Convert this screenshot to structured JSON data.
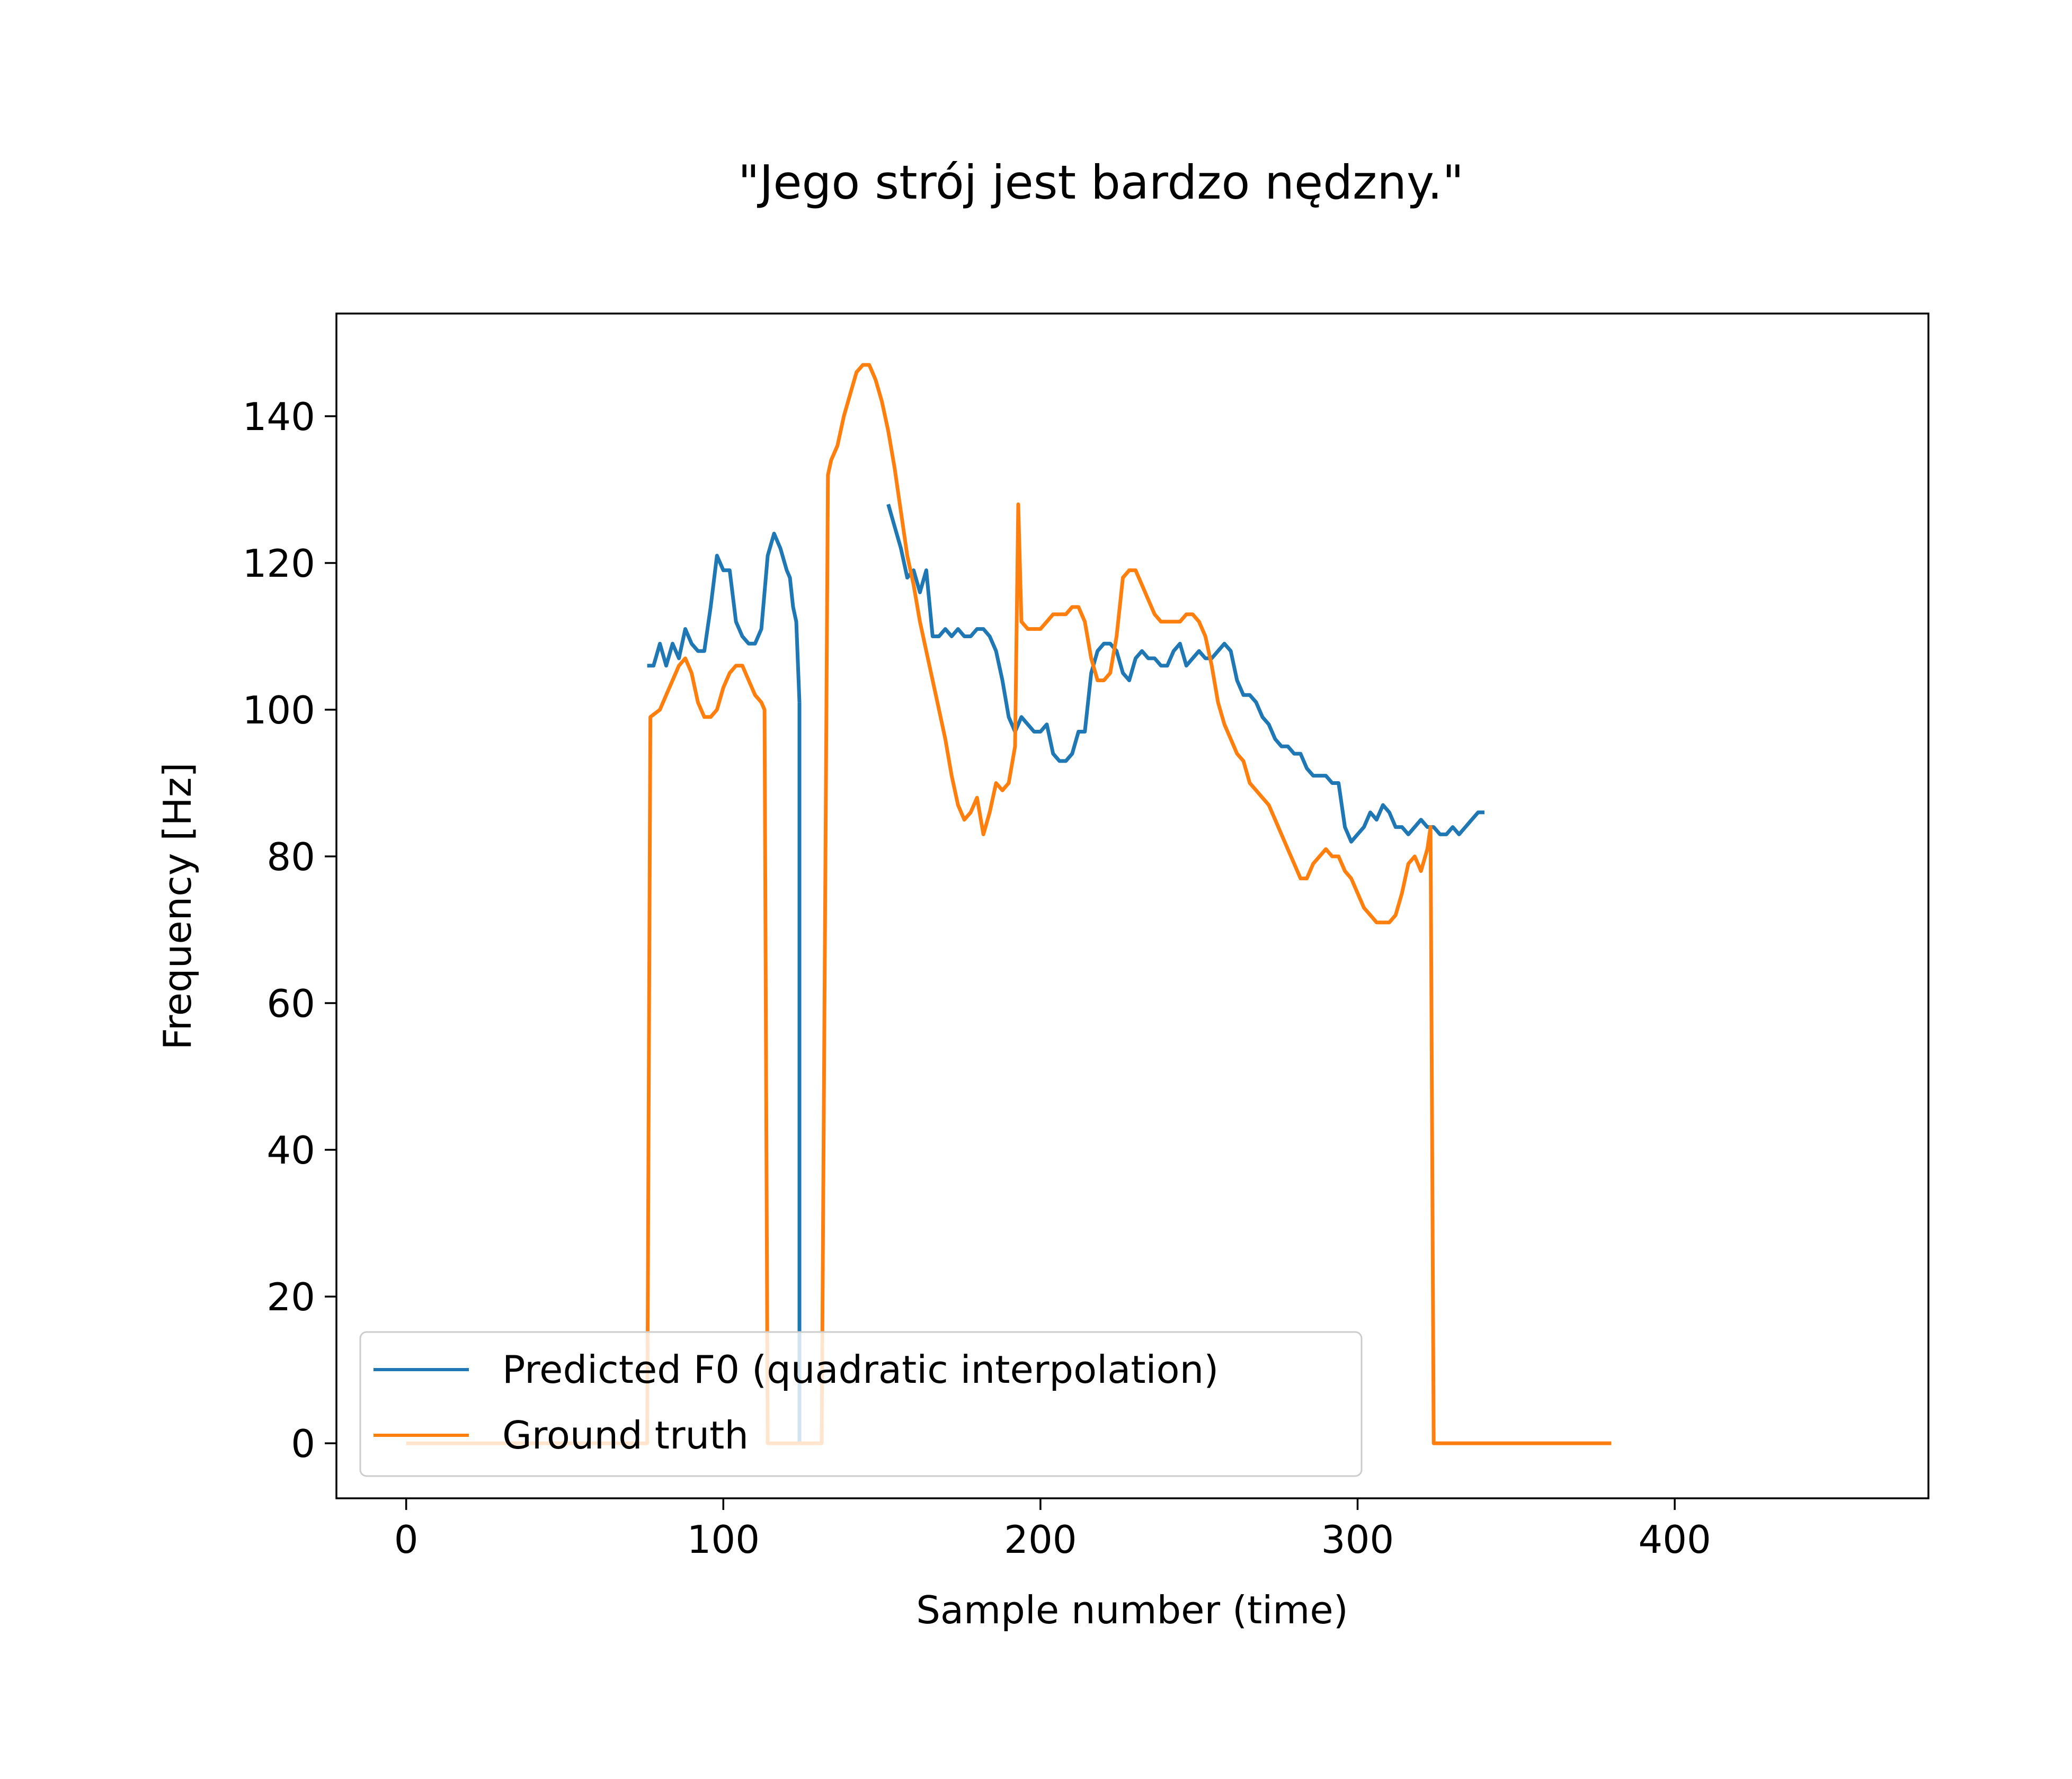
{
  "chart_data": {
    "type": "line",
    "title": "\"Jego strój jest bardzo nędzny.\"",
    "xlabel": "Sample number (time)",
    "ylabel": "Frequency [Hz]",
    "xlim": [
      -22,
      480
    ],
    "ylim": [
      -7.5,
      154
    ],
    "xticks": [
      0,
      100,
      200,
      300,
      400
    ],
    "yticks": [
      0,
      20,
      40,
      60,
      80,
      100,
      120,
      140
    ],
    "grid": false,
    "legend_position": "lower left",
    "series": [
      {
        "name": "Predicted F0 (quadratic interpolation)",
        "color": "#1f77b4",
        "segments": [
          [
            [
              76,
              106
            ],
            [
              78,
              106
            ],
            [
              80,
              109
            ],
            [
              82,
              106
            ],
            [
              84,
              109
            ],
            [
              86,
              107
            ],
            [
              88,
              111
            ],
            [
              90,
              109
            ],
            [
              92,
              108
            ],
            [
              94,
              108
            ],
            [
              96,
              114
            ],
            [
              98,
              121
            ],
            [
              100,
              119
            ],
            [
              102,
              119
            ],
            [
              104,
              112
            ],
            [
              106,
              110
            ],
            [
              108,
              109
            ],
            [
              110,
              109
            ],
            [
              112,
              111
            ],
            [
              114,
              121
            ],
            [
              116,
              124
            ],
            [
              118,
              122
            ],
            [
              120,
              119
            ],
            [
              121,
              118
            ],
            [
              122,
              114
            ],
            [
              123,
              112
            ],
            [
              124,
              101
            ]
          ],
          [
            [
              152,
              128
            ],
            [
              154,
              125
            ],
            [
              156,
              122
            ],
            [
              158,
              118
            ],
            [
              160,
              119
            ],
            [
              162,
              116
            ],
            [
              164,
              119
            ],
            [
              166,
              110
            ],
            [
              168,
              110
            ],
            [
              170,
              111
            ],
            [
              172,
              110
            ],
            [
              174,
              111
            ],
            [
              176,
              110
            ],
            [
              178,
              110
            ],
            [
              180,
              111
            ],
            [
              182,
              111
            ],
            [
              184,
              110
            ],
            [
              186,
              108
            ],
            [
              188,
              104
            ],
            [
              190,
              99
            ],
            [
              192,
              97
            ],
            [
              194,
              99
            ],
            [
              196,
              98
            ],
            [
              198,
              97
            ],
            [
              200,
              97
            ],
            [
              202,
              98
            ],
            [
              204,
              94
            ],
            [
              206,
              93
            ],
            [
              208,
              93
            ],
            [
              210,
              94
            ],
            [
              212,
              97
            ],
            [
              214,
              97
            ],
            [
              216,
              105
            ],
            [
              218,
              108
            ],
            [
              220,
              109
            ],
            [
              222,
              109
            ],
            [
              224,
              108
            ],
            [
              226,
              105
            ],
            [
              228,
              104
            ],
            [
              230,
              107
            ],
            [
              232,
              108
            ],
            [
              234,
              107
            ],
            [
              236,
              107
            ],
            [
              238,
              106
            ],
            [
              240,
              106
            ],
            [
              242,
              108
            ],
            [
              244,
              109
            ],
            [
              246,
              106
            ],
            [
              248,
              107
            ],
            [
              250,
              108
            ],
            [
              252,
              107
            ],
            [
              254,
              107
            ],
            [
              256,
              108
            ],
            [
              258,
              109
            ],
            [
              260,
              108
            ],
            [
              262,
              104
            ],
            [
              264,
              102
            ],
            [
              266,
              102
            ],
            [
              268,
              101
            ],
            [
              270,
              99
            ],
            [
              272,
              98
            ],
            [
              274,
              96
            ],
            [
              276,
              95
            ],
            [
              278,
              95
            ],
            [
              280,
              94
            ],
            [
              282,
              94
            ],
            [
              284,
              92
            ],
            [
              286,
              91
            ],
            [
              288,
              91
            ],
            [
              290,
              91
            ],
            [
              292,
              90
            ],
            [
              294,
              90
            ],
            [
              296,
              84
            ],
            [
              298,
              82
            ],
            [
              300,
              83
            ],
            [
              302,
              84
            ],
            [
              304,
              86
            ],
            [
              306,
              85
            ],
            [
              308,
              87
            ],
            [
              310,
              86
            ],
            [
              312,
              84
            ],
            [
              314,
              84
            ],
            [
              316,
              83
            ],
            [
              318,
              84
            ],
            [
              320,
              85
            ],
            [
              322,
              84
            ],
            [
              324,
              84
            ],
            [
              326,
              83
            ],
            [
              328,
              83
            ],
            [
              330,
              84
            ],
            [
              332,
              83
            ],
            [
              334,
              84
            ],
            [
              336,
              85
            ],
            [
              338,
              86
            ],
            [
              340,
              86
            ]
          ],
          [
            [
              124,
              101
            ],
            [
              124,
              0
            ]
          ]
        ]
      },
      {
        "name": "Ground truth",
        "color": "#ff7f0e",
        "segments": [
          [
            [
              0,
              0
            ],
            [
              74,
              0
            ],
            [
              76,
              0
            ],
            [
              77,
              99
            ],
            [
              80,
              100
            ],
            [
              82,
              102
            ],
            [
              84,
              104
            ],
            [
              86,
              106
            ],
            [
              88,
              107
            ],
            [
              90,
              105
            ],
            [
              92,
              101
            ],
            [
              94,
              99
            ],
            [
              96,
              99
            ],
            [
              98,
              100
            ],
            [
              100,
              103
            ],
            [
              102,
              105
            ],
            [
              104,
              106
            ],
            [
              106,
              106
            ],
            [
              108,
              104
            ],
            [
              110,
              102
            ],
            [
              112,
              101
            ],
            [
              113,
              100
            ],
            [
              114,
              0
            ],
            [
              130,
              0
            ],
            [
              131,
              0
            ],
            [
              133,
              132
            ],
            [
              134,
              134
            ],
            [
              136,
              136
            ],
            [
              138,
              140
            ],
            [
              140,
              143
            ],
            [
              142,
              146
            ],
            [
              144,
              147
            ],
            [
              146,
              147
            ],
            [
              148,
              145
            ],
            [
              150,
              142
            ],
            [
              152,
              138
            ],
            [
              154,
              133
            ],
            [
              156,
              127
            ],
            [
              158,
              121
            ],
            [
              160,
              117
            ],
            [
              162,
              112
            ],
            [
              164,
              108
            ],
            [
              166,
              104
            ],
            [
              168,
              100
            ],
            [
              170,
              96
            ],
            [
              172,
              91
            ],
            [
              174,
              87
            ],
            [
              176,
              85
            ],
            [
              178,
              86
            ],
            [
              180,
              88
            ],
            [
              182,
              83
            ],
            [
              184,
              86
            ],
            [
              186,
              90
            ],
            [
              188,
              89
            ],
            [
              190,
              90
            ],
            [
              192,
              95
            ],
            [
              193,
              128
            ],
            [
              194,
              112
            ],
            [
              196,
              111
            ],
            [
              198,
              111
            ],
            [
              200,
              111
            ],
            [
              202,
              112
            ],
            [
              204,
              113
            ],
            [
              206,
              113
            ],
            [
              208,
              113
            ],
            [
              210,
              114
            ],
            [
              212,
              114
            ],
            [
              214,
              112
            ],
            [
              216,
              107
            ],
            [
              218,
              104
            ],
            [
              220,
              104
            ],
            [
              222,
              105
            ],
            [
              224,
              110
            ],
            [
              226,
              118
            ],
            [
              228,
              119
            ],
            [
              230,
              119
            ],
            [
              232,
              117
            ],
            [
              234,
              115
            ],
            [
              236,
              113
            ],
            [
              238,
              112
            ],
            [
              240,
              112
            ],
            [
              242,
              112
            ],
            [
              244,
              112
            ],
            [
              246,
              113
            ],
            [
              248,
              113
            ],
            [
              250,
              112
            ],
            [
              252,
              110
            ],
            [
              254,
              106
            ],
            [
              256,
              101
            ],
            [
              258,
              98
            ],
            [
              260,
              96
            ],
            [
              262,
              94
            ],
            [
              264,
              93
            ],
            [
              266,
              90
            ],
            [
              268,
              89
            ],
            [
              270,
              88
            ],
            [
              272,
              87
            ],
            [
              274,
              85
            ],
            [
              276,
              83
            ],
            [
              278,
              81
            ],
            [
              280,
              79
            ],
            [
              282,
              77
            ],
            [
              284,
              77
            ],
            [
              286,
              79
            ],
            [
              288,
              80
            ],
            [
              290,
              81
            ],
            [
              292,
              80
            ],
            [
              294,
              80
            ],
            [
              296,
              78
            ],
            [
              298,
              77
            ],
            [
              300,
              75
            ],
            [
              302,
              73
            ],
            [
              304,
              72
            ],
            [
              306,
              71
            ],
            [
              308,
              71
            ],
            [
              310,
              71
            ],
            [
              312,
              72
            ],
            [
              314,
              75
            ],
            [
              316,
              79
            ],
            [
              318,
              80
            ],
            [
              320,
              78
            ],
            [
              322,
              81
            ],
            [
              323,
              84
            ],
            [
              324,
              0
            ],
            [
              380,
              0
            ]
          ]
        ]
      }
    ]
  }
}
